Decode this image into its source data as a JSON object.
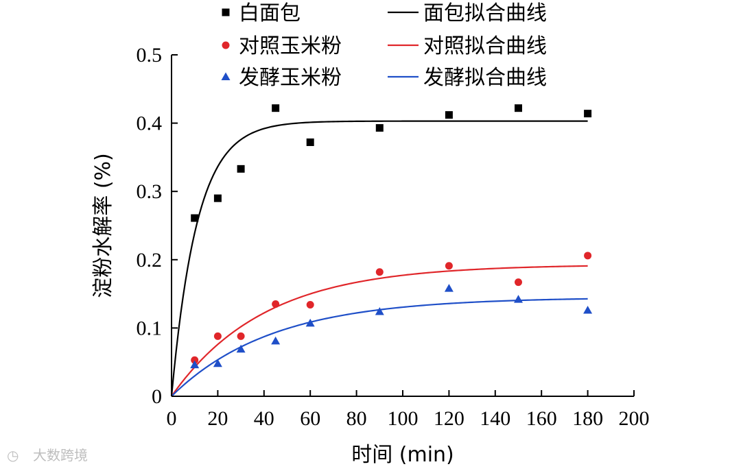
{
  "chart_data": {
    "type": "scatter",
    "xlabel": "时间 (min)",
    "ylabel": "淀粉水解率 (%)",
    "xlim": [
      0,
      200
    ],
    "ylim": [
      0,
      0.5
    ],
    "xticks": [
      0,
      20,
      40,
      60,
      80,
      100,
      120,
      140,
      160,
      180,
      200
    ],
    "yticks": [
      0,
      0.1,
      0.2,
      0.3,
      0.4,
      0.5
    ],
    "ytick_labels": [
      "0",
      "0.1",
      "0.2",
      "0.3",
      "0.4",
      "0.5"
    ],
    "series": [
      {
        "name": "白面包",
        "kind": "points",
        "marker": "square",
        "color": "#000000",
        "x": [
          10,
          20,
          30,
          45,
          60,
          90,
          120,
          150,
          180
        ],
        "y": [
          0.261,
          0.29,
          0.333,
          0.422,
          0.372,
          0.393,
          0.412,
          0.422,
          0.414
        ]
      },
      {
        "name": "对照玉米粉",
        "kind": "points",
        "marker": "circle",
        "color": "#e0262a",
        "x": [
          10,
          20,
          30,
          45,
          60,
          90,
          120,
          150,
          180
        ],
        "y": [
          0.053,
          0.088,
          0.088,
          0.135,
          0.134,
          0.182,
          0.191,
          0.167,
          0.206
        ]
      },
      {
        "name": "发酵玉米粉",
        "kind": "points",
        "marker": "triangle",
        "color": "#1f4fc8",
        "x": [
          10,
          20,
          30,
          45,
          60,
          90,
          120,
          150,
          180
        ],
        "y": [
          0.046,
          0.048,
          0.069,
          0.081,
          0.107,
          0.124,
          0.158,
          0.142,
          0.126
        ]
      },
      {
        "name": "面包拟合曲线",
        "kind": "fit",
        "color": "#000000",
        "c_inf": 0.403,
        "k": 0.09
      },
      {
        "name": "对照拟合曲线",
        "kind": "fit",
        "color": "#e0262a",
        "c_inf": 0.193,
        "k": 0.025
      },
      {
        "name": "发酵拟合曲线",
        "kind": "fit",
        "color": "#1f4fc8",
        "c_inf": 0.145,
        "k": 0.023
      }
    ]
  },
  "watermark": "大数跨境"
}
